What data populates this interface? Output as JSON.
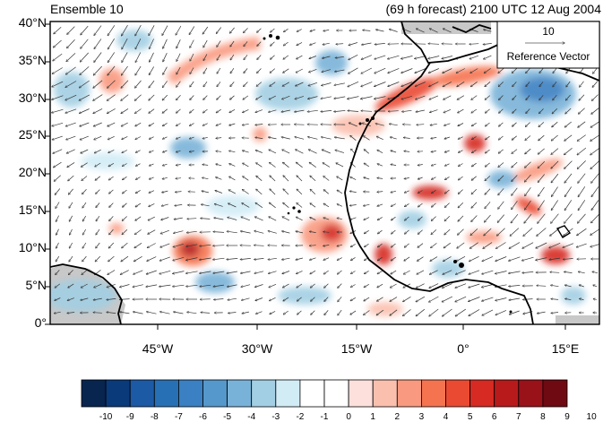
{
  "map": {
    "title_left": "Ensemble 10",
    "title_right": "(69 h forecast) 2100 UTC 12 Aug 2004",
    "lat_labels": [
      "40°N",
      "35°N",
      "30°N",
      "25°N",
      "20°N",
      "15°N",
      "10°N",
      "5°N",
      "0°"
    ],
    "lon_labels": [
      "45°W",
      "30°W",
      "15°W",
      "0°",
      "15°E"
    ],
    "reference_vector": {
      "magnitude": "10",
      "label": "Reference Vector"
    },
    "colorbar": {
      "labels": [
        "-10",
        "-9",
        "-8",
        "-7",
        "-6",
        "-5",
        "-4",
        "-3",
        "-2",
        "-1",
        "0",
        "1",
        "2",
        "3",
        "4",
        "5",
        "6",
        "7",
        "8",
        "9",
        "10"
      ],
      "colors": [
        "#08254f",
        "#0b3a7a",
        "#1c5aa6",
        "#2870b5",
        "#3a80c2",
        "#5598cb",
        "#79b2d8",
        "#a2cfe3",
        "#d2ecf6",
        "#ffffff",
        "#ffffff",
        "#fde0db",
        "#fbbfae",
        "#f9997f",
        "#f5734f",
        "#ea4a32",
        "#d62a22",
        "#b81a1b",
        "#99121a",
        "#6f0a12"
      ]
    },
    "colors": {
      "land": "#c8c8c8",
      "coast": "#000000",
      "arrow": "#333333",
      "warm": "#e8452f",
      "cool": "#3a80c2"
    }
  }
}
